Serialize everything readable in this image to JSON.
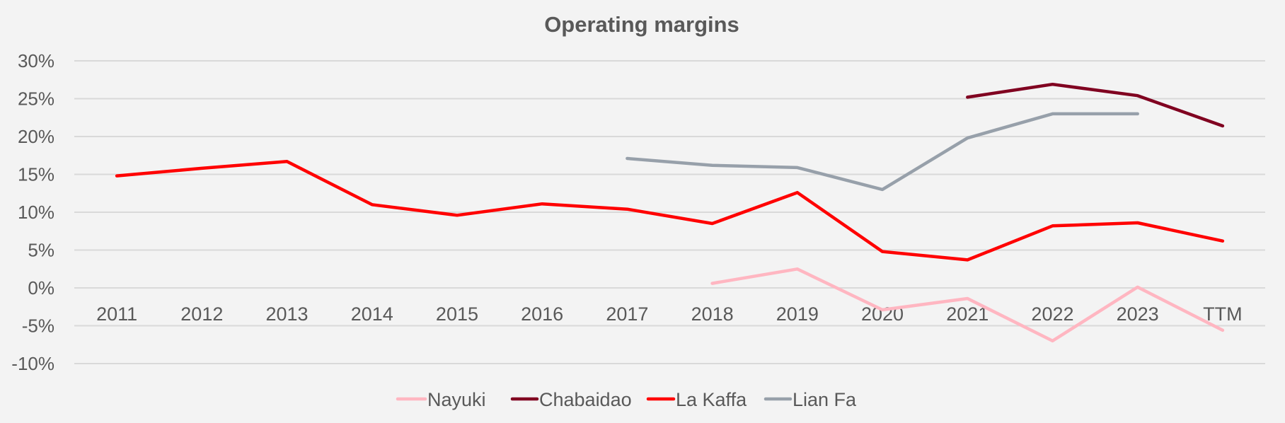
{
  "chart_data": {
    "type": "line",
    "title": "Operating margins",
    "xlabel": "",
    "ylabel": "",
    "categories": [
      "2011",
      "2012",
      "2013",
      "2014",
      "2015",
      "2016",
      "2017",
      "2018",
      "2019",
      "2020",
      "2021",
      "2022",
      "2023",
      "TTM"
    ],
    "ylim": [
      -10,
      30
    ],
    "yticks": [
      30,
      25,
      20,
      15,
      10,
      5,
      0,
      -5,
      -10
    ],
    "ytick_labels": [
      "30%",
      "25%",
      "20%",
      "15%",
      "10%",
      "5%",
      "0%",
      "-5%",
      "-10%"
    ],
    "grid": true,
    "legend_position": "bottom",
    "series": [
      {
        "name": "Nayuki",
        "color": "#ffb6c1",
        "values": [
          null,
          null,
          null,
          null,
          null,
          null,
          null,
          0.6,
          2.5,
          -2.9,
          -1.4,
          -7.0,
          0.1,
          -5.6
        ]
      },
      {
        "name": "Chabaidao",
        "color": "#800020",
        "values": [
          null,
          null,
          null,
          null,
          null,
          null,
          null,
          null,
          null,
          null,
          25.2,
          26.9,
          25.4,
          21.4
        ]
      },
      {
        "name": "La Kaffa",
        "color": "#ff0000",
        "values": [
          14.8,
          15.8,
          16.7,
          11.0,
          9.6,
          11.1,
          10.4,
          8.5,
          12.6,
          4.8,
          3.7,
          8.2,
          8.6,
          6.2
        ]
      },
      {
        "name": "Lian Fa",
        "color": "#97a0aa",
        "values": [
          null,
          null,
          null,
          null,
          null,
          null,
          17.1,
          16.2,
          15.9,
          13.0,
          19.8,
          23.0,
          23.0,
          null
        ]
      }
    ]
  }
}
